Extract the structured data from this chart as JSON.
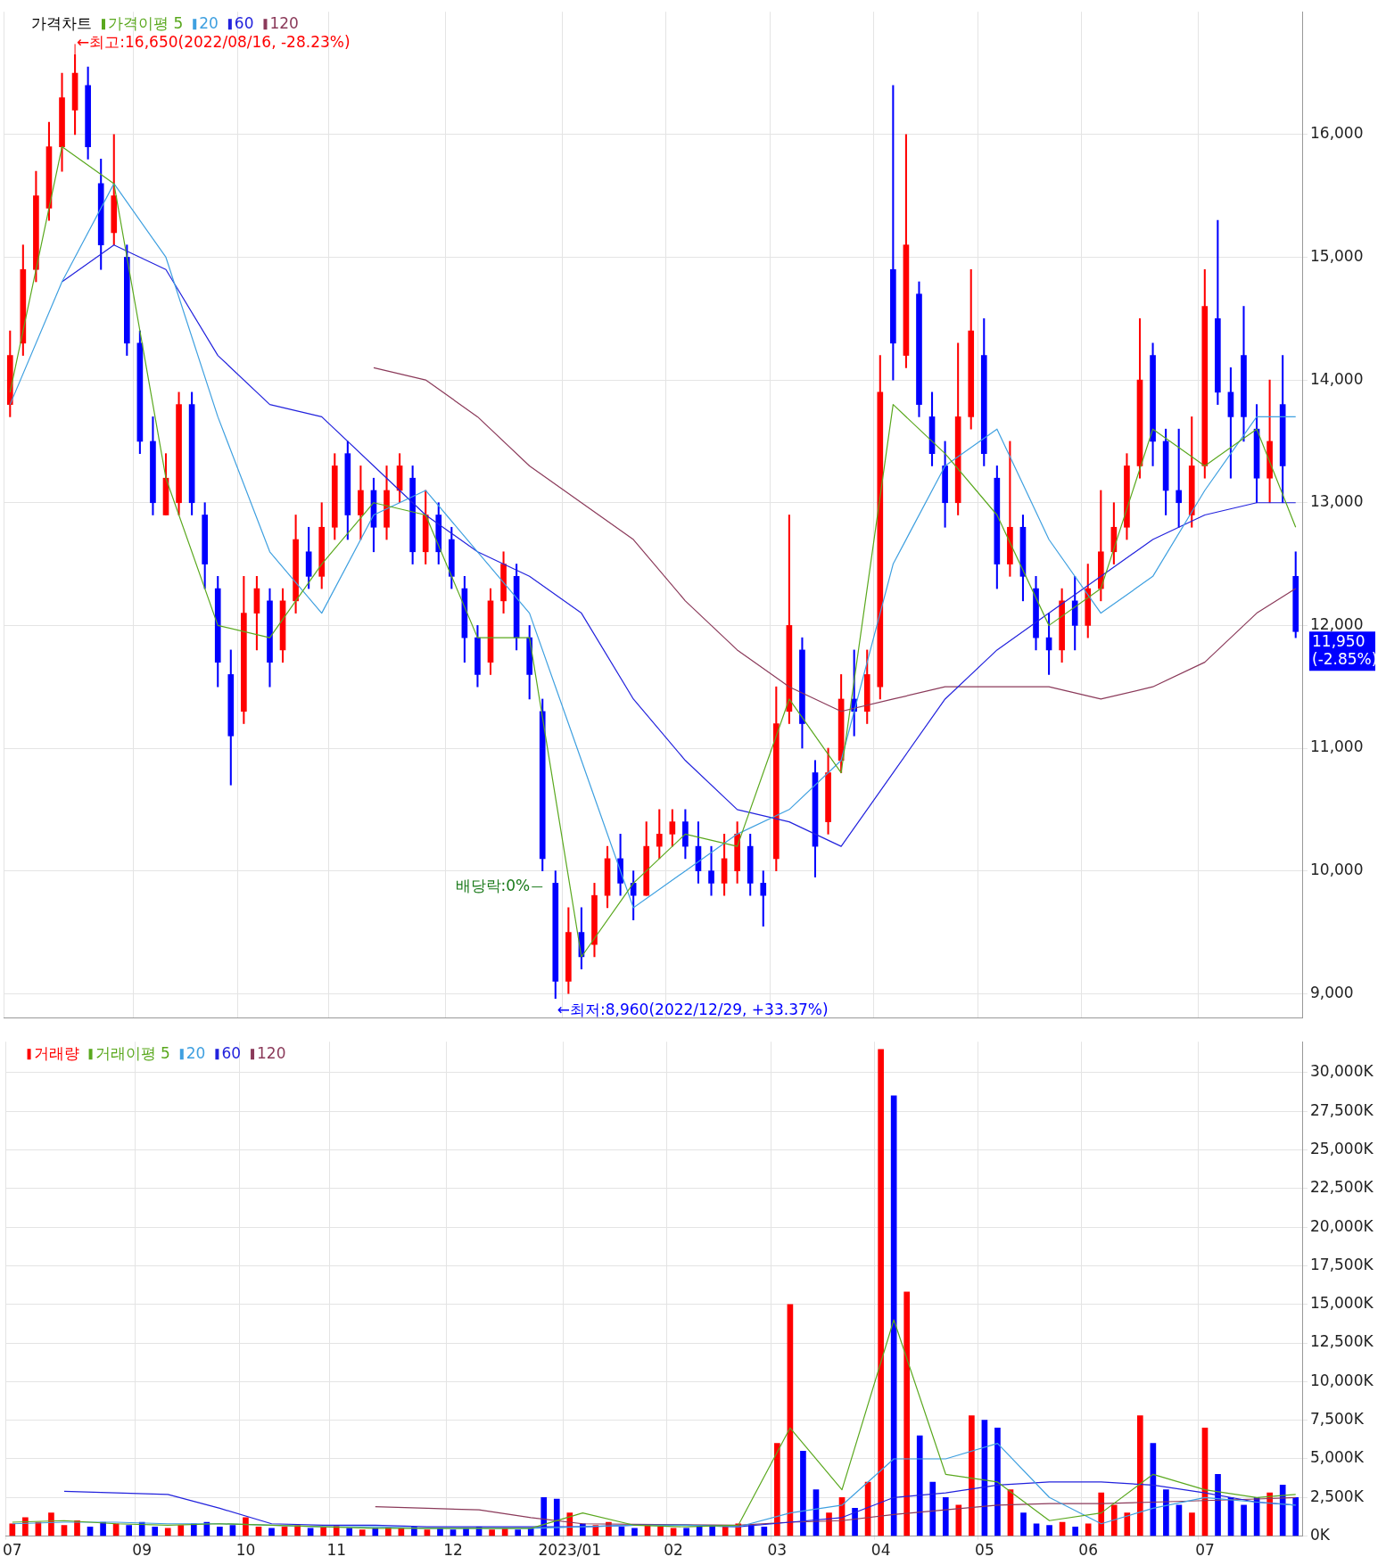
{
  "chart_data": [
    {
      "type": "candlestick",
      "categories": [
        "07",
        null,
        null,
        null,
        null,
        null,
        null,
        null,
        null,
        null,
        "09",
        null,
        null,
        null,
        null,
        null,
        null,
        null,
        "10",
        null,
        null,
        null,
        null,
        null,
        null,
        "11",
        null,
        null,
        null,
        null,
        null,
        null,
        null,
        null,
        "12",
        null,
        null,
        null,
        null,
        null,
        null,
        null,
        null,
        "2023/01",
        null,
        null,
        null,
        null,
        null,
        null,
        null,
        "02",
        null,
        null,
        null,
        null,
        null,
        null,
        null,
        "03",
        null,
        null,
        null,
        null,
        null,
        null,
        null,
        "04",
        null,
        null,
        null,
        null,
        null,
        null,
        null,
        "05",
        null,
        null,
        null,
        null,
        null,
        null,
        null,
        "06",
        null,
        null,
        null,
        null,
        null,
        null,
        null,
        null,
        "07",
        null,
        null,
        null,
        null,
        null,
        null,
        null
      ],
      "tick_labels": "y",
      "ylim": [
        8800,
        17000
      ],
      "yticks": [
        {
          "value": 9000,
          "label": "9,000"
        },
        {
          "value": 10000,
          "label": "10,000"
        },
        {
          "value": 11000,
          "label": "11,000"
        },
        {
          "value": 12000,
          "label": "12,000"
        },
        {
          "value": 13000,
          "label": "13,000"
        },
        {
          "value": 14000,
          "label": "14,000"
        },
        {
          "value": 15000,
          "label": "15,000"
        },
        {
          "value": 16000,
          "label": "16,000"
        }
      ],
      "grid": true,
      "legend": "top left",
      "marker": "none",
      "annotations": [
        "←최고:16,650(2022/08/16, -28.23%)",
        "←최저:8,960(2022/12/29, +33.37%)",
        "배당락:0%",
        "11,950\n(-2.85%)"
      ],
      "series": [
        {
          "name": "가격차트",
          "type": "candlestick",
          "ohlc": [
            [
              13800,
              14400,
              13700,
              14200
            ],
            [
              14300,
              15100,
              14200,
              14900
            ],
            [
              14900,
              15700,
              14800,
              15500
            ],
            [
              15400,
              16100,
              15300,
              15900
            ],
            [
              15900,
              16500,
              15700,
              16300
            ],
            [
              16200,
              16650,
              16000,
              16500
            ],
            [
              16400,
              16550,
              15800,
              15900
            ],
            [
              15600,
              15800,
              14900,
              15100
            ],
            [
              15200,
              16000,
              15100,
              15500
            ],
            [
              15000,
              15100,
              14200,
              14300
            ],
            [
              14300,
              14400,
              13400,
              13500
            ],
            [
              13500,
              13700,
              12900,
              13000
            ],
            [
              12900,
              13400,
              12900,
              13200
            ],
            [
              13000,
              13900,
              12900,
              13800
            ],
            [
              13800,
              13900,
              12900,
              13000
            ],
            [
              12900,
              13000,
              12300,
              12500
            ],
            [
              12300,
              12400,
              11500,
              11700
            ],
            [
              11600,
              11800,
              10700,
              11100
            ],
            [
              11300,
              12400,
              11200,
              12100
            ],
            [
              12100,
              12400,
              11800,
              12300
            ],
            [
              12200,
              12300,
              11500,
              11700
            ],
            [
              11800,
              12300,
              11700,
              12200
            ],
            [
              12200,
              12900,
              12100,
              12700
            ],
            [
              12600,
              12800,
              12300,
              12400
            ],
            [
              12400,
              13000,
              12300,
              12800
            ],
            [
              12800,
              13400,
              12700,
              13300
            ],
            [
              13400,
              13500,
              12700,
              12900
            ],
            [
              12900,
              13300,
              12700,
              13100
            ],
            [
              13100,
              13200,
              12600,
              12800
            ],
            [
              12800,
              13300,
              12700,
              13100
            ],
            [
              13100,
              13400,
              13000,
              13300
            ],
            [
              13200,
              13300,
              12500,
              12600
            ],
            [
              12600,
              13100,
              12500,
              12900
            ],
            [
              12900,
              13000,
              12500,
              12600
            ],
            [
              12700,
              12800,
              12300,
              12400
            ],
            [
              12300,
              12400,
              11700,
              11900
            ],
            [
              11900,
              12000,
              11500,
              11600
            ],
            [
              11700,
              12300,
              11600,
              12200
            ],
            [
              12200,
              12600,
              12100,
              12500
            ],
            [
              12400,
              12500,
              11800,
              11900
            ],
            [
              11900,
              12000,
              11400,
              11600
            ],
            [
              11300,
              11400,
              10000,
              10100
            ],
            [
              9900,
              10000,
              8960,
              9100
            ],
            [
              9100,
              9700,
              9000,
              9500
            ],
            [
              9500,
              9700,
              9200,
              9300
            ],
            [
              9400,
              9900,
              9300,
              9800
            ],
            [
              9800,
              10200,
              9700,
              10100
            ],
            [
              10100,
              10300,
              9800,
              9900
            ],
            [
              9900,
              10000,
              9600,
              9800
            ],
            [
              9800,
              10400,
              9800,
              10200
            ],
            [
              10200,
              10500,
              10100,
              10300
            ],
            [
              10300,
              10500,
              10200,
              10400
            ],
            [
              10400,
              10500,
              10100,
              10200
            ],
            [
              10200,
              10400,
              9900,
              10000
            ],
            [
              10000,
              10200,
              9800,
              9900
            ],
            [
              9900,
              10300,
              9800,
              10100
            ],
            [
              10000,
              10400,
              9900,
              10300
            ],
            [
              10200,
              10300,
              9800,
              9900
            ],
            [
              9900,
              10000,
              9550,
              9800
            ],
            [
              10100,
              11500,
              10000,
              11200
            ],
            [
              11300,
              12900,
              11200,
              12000
            ],
            [
              11800,
              11900,
              11000,
              11200
            ],
            [
              10800,
              10900,
              9950,
              10200
            ],
            [
              10400,
              11000,
              10300,
              10800
            ],
            [
              10900,
              11600,
              10800,
              11400
            ],
            [
              11400,
              11800,
              11100,
              11300
            ],
            [
              11300,
              11800,
              11200,
              11600
            ],
            [
              11500,
              14200,
              11400,
              13900
            ],
            [
              14900,
              16400,
              14000,
              14300
            ],
            [
              14200,
              16000,
              14100,
              15100
            ],
            [
              14700,
              14800,
              13700,
              13800
            ],
            [
              13700,
              13900,
              13300,
              13400
            ],
            [
              13300,
              13500,
              12800,
              13000
            ],
            [
              13000,
              14300,
              12900,
              13700
            ],
            [
              13700,
              14900,
              13600,
              14400
            ],
            [
              14200,
              14500,
              13300,
              13400
            ],
            [
              13200,
              13300,
              12300,
              12500
            ],
            [
              12500,
              13500,
              12400,
              12800
            ],
            [
              12800,
              12900,
              12200,
              12400
            ],
            [
              12300,
              12400,
              11800,
              11900
            ],
            [
              11900,
              12100,
              11600,
              11800
            ],
            [
              11800,
              12300,
              11700,
              12200
            ],
            [
              12200,
              12400,
              11800,
              12000
            ],
            [
              12000,
              12500,
              11900,
              12300
            ],
            [
              12300,
              13100,
              12200,
              12600
            ],
            [
              12600,
              13000,
              12500,
              12800
            ],
            [
              12800,
              13400,
              12700,
              13300
            ],
            [
              13300,
              14500,
              13200,
              14000
            ],
            [
              14200,
              14300,
              13300,
              13500
            ],
            [
              13500,
              13600,
              12900,
              13100
            ],
            [
              13100,
              13600,
              12800,
              13000
            ],
            [
              12900,
              13700,
              12800,
              13300
            ],
            [
              13300,
              14900,
              13200,
              14600
            ],
            [
              14500,
              15300,
              13800,
              13900
            ],
            [
              13900,
              14100,
              13200,
              13700
            ],
            [
              14200,
              14600,
              13500,
              13700
            ],
            [
              13600,
              13800,
              13000,
              13200
            ],
            [
              13200,
              14000,
              13000,
              13500
            ],
            [
              13800,
              14200,
              13000,
              13300
            ],
            [
              12400,
              12600,
              11900,
              11950
            ]
          ],
          "colors": [
            "#ff0000",
            "#ff0000",
            "#ff0000",
            "#ff0000",
            "#ff0000",
            "#ff0000",
            "#0000ff",
            "#0000ff",
            "#ff0000",
            "#0000ff",
            "#0000ff",
            "#0000ff",
            "#ff0000",
            "#ff0000",
            "#0000ff",
            "#0000ff",
            "#0000ff",
            "#0000ff",
            "#ff0000",
            "#ff0000",
            "#0000ff",
            "#ff0000",
            "#ff0000",
            "#0000ff",
            "#ff0000",
            "#ff0000",
            "#0000ff",
            "#ff0000",
            "#0000ff",
            "#ff0000",
            "#ff0000",
            "#0000ff",
            "#ff0000",
            "#0000ff",
            "#0000ff",
            "#0000ff",
            "#0000ff",
            "#ff0000",
            "#ff0000",
            "#0000ff",
            "#0000ff",
            "#0000ff",
            "#0000ff",
            "#ff0000",
            "#0000ff",
            "#ff0000",
            "#ff0000",
            "#0000ff",
            "#0000ff",
            "#ff0000",
            "#ff0000",
            "#ff0000",
            "#0000ff",
            "#0000ff",
            "#0000ff",
            "#ff0000",
            "#ff0000",
            "#0000ff",
            "#0000ff",
            "#ff0000",
            "#ff0000",
            "#0000ff",
            "#0000ff",
            "#ff0000",
            "#ff0000",
            "#0000ff",
            "#ff0000",
            "#ff0000",
            "#0000ff",
            "#ff0000",
            "#0000ff",
            "#0000ff",
            "#0000ff",
            "#ff0000",
            "#ff0000",
            "#0000ff",
            "#0000ff",
            "#ff0000",
            "#0000ff",
            "#0000ff",
            "#0000ff",
            "#ff0000",
            "#0000ff",
            "#ff0000",
            "#ff0000",
            "#ff0000",
            "#ff0000",
            "#ff0000",
            "#0000ff",
            "#0000ff",
            "#0000ff",
            "#ff0000",
            "#ff0000",
            "#0000ff",
            "#0000ff",
            "#0000ff",
            "#0000ff",
            "#ff0000",
            "#0000ff",
            "#0000ff"
          ]
        },
        {
          "name": "가격이평 5",
          "type": "line",
          "color": "#5aa81e",
          "values": [
            13900,
            null,
            null,
            null,
            15900,
            null,
            null,
            null,
            15600,
            null,
            null,
            null,
            13200,
            null,
            null,
            null,
            12000,
            null,
            null,
            null,
            11900,
            null,
            null,
            null,
            12500,
            null,
            null,
            null,
            13000,
            null,
            null,
            null,
            12900,
            null,
            null,
            null,
            11900,
            null,
            null,
            null,
            11900,
            null,
            null,
            null,
            9300,
            null,
            null,
            null,
            9900,
            null,
            null,
            null,
            10300,
            null,
            null,
            null,
            10200,
            null,
            null,
            null,
            11400,
            null,
            null,
            null,
            10800,
            null,
            null,
            null,
            13800,
            null,
            null,
            null,
            13400,
            null,
            null,
            null,
            12900,
            null,
            null,
            null,
            12000,
            null,
            null,
            null,
            12300,
            null,
            null,
            null,
            13600,
            null,
            null,
            null,
            13300,
            null,
            null,
            null,
            13600,
            null,
            null,
            12800
          ]
        },
        {
          "name": "20",
          "type": "line",
          "color": "#3fa0e0",
          "values": [
            13800,
            null,
            null,
            null,
            14800,
            null,
            null,
            null,
            15600,
            null,
            null,
            null,
            15000,
            null,
            null,
            null,
            13700,
            null,
            null,
            null,
            12600,
            null,
            null,
            null,
            12100,
            null,
            null,
            null,
            12900,
            null,
            null,
            null,
            13100,
            null,
            null,
            null,
            12600,
            null,
            null,
            null,
            12100,
            null,
            null,
            null,
            10900,
            null,
            null,
            null,
            9700,
            null,
            null,
            null,
            10000,
            null,
            null,
            null,
            10300,
            null,
            null,
            null,
            10500,
            null,
            null,
            null,
            10900,
            null,
            null,
            null,
            12500,
            null,
            null,
            null,
            13300,
            null,
            null,
            null,
            13600,
            null,
            null,
            null,
            12700,
            null,
            null,
            null,
            12100,
            null,
            null,
            null,
            12400,
            null,
            null,
            null,
            13100,
            null,
            null,
            null,
            13700,
            null,
            null,
            13700
          ]
        },
        {
          "name": "60",
          "type": "line",
          "color": "#2222dd",
          "values": [
            null,
            null,
            null,
            null,
            14800,
            null,
            null,
            null,
            15100,
            null,
            null,
            null,
            14900,
            null,
            null,
            null,
            14200,
            null,
            null,
            null,
            13800,
            null,
            null,
            null,
            13700,
            null,
            null,
            null,
            13300,
            null,
            null,
            null,
            12900,
            null,
            null,
            null,
            12600,
            null,
            null,
            null,
            12400,
            null,
            null,
            null,
            12100,
            null,
            null,
            null,
            11400,
            null,
            null,
            null,
            10900,
            null,
            null,
            null,
            10500,
            null,
            null,
            null,
            10400,
            null,
            null,
            null,
            10200,
            null,
            null,
            null,
            10800,
            null,
            null,
            null,
            11400,
            null,
            null,
            null,
            11800,
            null,
            null,
            null,
            12100,
            null,
            null,
            null,
            12400,
            null,
            null,
            null,
            12700,
            null,
            null,
            null,
            12900,
            null,
            null,
            null,
            13000,
            null,
            null,
            13000
          ]
        },
        {
          "name": "120",
          "type": "line",
          "color": "#8b3a5a",
          "values": [
            null,
            null,
            null,
            null,
            null,
            null,
            null,
            null,
            null,
            null,
            null,
            null,
            null,
            null,
            null,
            null,
            null,
            null,
            null,
            null,
            null,
            null,
            null,
            null,
            null,
            null,
            null,
            null,
            14100,
            null,
            null,
            null,
            14000,
            null,
            null,
            null,
            13700,
            null,
            null,
            null,
            13300,
            null,
            null,
            null,
            13000,
            null,
            null,
            null,
            12700,
            null,
            null,
            null,
            12200,
            null,
            null,
            null,
            11800,
            null,
            null,
            null,
            11500,
            null,
            null,
            null,
            11300,
            null,
            null,
            null,
            11400,
            null,
            null,
            null,
            11500,
            null,
            null,
            null,
            11500,
            null,
            null,
            null,
            11500,
            null,
            null,
            null,
            11400,
            null,
            null,
            null,
            11500,
            null,
            null,
            null,
            11700,
            null,
            null,
            null,
            12100,
            null,
            null,
            12300
          ]
        }
      ]
    },
    {
      "type": "bar",
      "categories": [
        "07",
        null,
        null,
        null,
        null,
        null,
        null,
        null,
        null,
        null,
        "09",
        null,
        null,
        null,
        null,
        null,
        null,
        null,
        "10",
        null,
        null,
        null,
        null,
        null,
        null,
        "11",
        null,
        null,
        null,
        null,
        null,
        null,
        null,
        null,
        "12",
        null,
        null,
        null,
        null,
        null,
        null,
        null,
        null,
        "2023/01",
        null,
        null,
        null,
        null,
        null,
        null,
        null,
        "02",
        null,
        null,
        null,
        null,
        null,
        null,
        null,
        "03",
        null,
        null,
        null,
        null,
        null,
        null,
        null,
        "04",
        null,
        null,
        null,
        null,
        null,
        null,
        null,
        "05",
        null,
        null,
        null,
        null,
        null,
        null,
        null,
        "06",
        null,
        null,
        null,
        null,
        null,
        null,
        null,
        null,
        "07",
        null,
        null,
        null,
        null,
        null,
        null,
        null
      ],
      "ylim": [
        0,
        32000
      ],
      "yticks": [
        {
          "value": 0,
          "label": "0K"
        },
        {
          "value": 2500,
          "label": "2,500K"
        },
        {
          "value": 5000,
          "label": "5,000K"
        },
        {
          "value": 7500,
          "label": "7,500K"
        },
        {
          "value": 10000,
          "label": "10,000K"
        },
        {
          "value": 12500,
          "label": "12,500K"
        },
        {
          "value": 15000,
          "label": "15,000K"
        },
        {
          "value": 17500,
          "label": "17,500K"
        },
        {
          "value": 20000,
          "label": "20,000K"
        },
        {
          "value": 22500,
          "label": "22,500K"
        },
        {
          "value": 25000,
          "label": "25,000K"
        },
        {
          "value": 27500,
          "label": "27,500K"
        },
        {
          "value": 30000,
          "label": "30,000K"
        }
      ],
      "grid": true,
      "legend": "top left",
      "marker": "none",
      "series": [
        {
          "name": "거래량",
          "type": "bar",
          "color": "#ff0000",
          "values": [
            800,
            1200,
            900,
            1500,
            700,
            1000,
            600,
            900,
            800,
            700,
            900,
            600,
            500,
            700,
            800,
            900,
            600,
            700,
            1200,
            600,
            500,
            600,
            700,
            500,
            600,
            700,
            500,
            400,
            500,
            600,
            500,
            600,
            400,
            500,
            400,
            500,
            600,
            400,
            500,
            400,
            500,
            2500,
            2400,
            1500,
            800,
            700,
            900,
            600,
            500,
            700,
            600,
            500,
            500,
            600,
            700,
            600,
            800,
            700,
            600,
            6000,
            15000,
            5500,
            3000,
            1500,
            2500,
            1800,
            3500,
            31500,
            28500,
            15800,
            6500,
            3500,
            2500,
            2000,
            7800,
            7500,
            7000,
            3000,
            1500,
            800,
            700,
            900,
            600,
            800,
            2800,
            2000,
            1500,
            7800,
            6000,
            3000,
            2000,
            1500,
            7000,
            4000,
            2500,
            2000,
            2500,
            2800,
            3300,
            2500
          ],
          "colors": [
            "#ff0000",
            "#ff0000",
            "#ff0000",
            "#ff0000",
            "#ff0000",
            "#ff0000",
            "#0000ff",
            "#0000ff",
            "#ff0000",
            "#0000ff",
            "#0000ff",
            "#0000ff",
            "#ff0000",
            "#ff0000",
            "#0000ff",
            "#0000ff",
            "#0000ff",
            "#0000ff",
            "#ff0000",
            "#ff0000",
            "#0000ff",
            "#ff0000",
            "#ff0000",
            "#0000ff",
            "#ff0000",
            "#ff0000",
            "#0000ff",
            "#ff0000",
            "#0000ff",
            "#ff0000",
            "#ff0000",
            "#0000ff",
            "#ff0000",
            "#0000ff",
            "#0000ff",
            "#0000ff",
            "#0000ff",
            "#ff0000",
            "#ff0000",
            "#0000ff",
            "#0000ff",
            "#0000ff",
            "#0000ff",
            "#ff0000",
            "#0000ff",
            "#ff0000",
            "#ff0000",
            "#0000ff",
            "#0000ff",
            "#ff0000",
            "#ff0000",
            "#ff0000",
            "#0000ff",
            "#0000ff",
            "#0000ff",
            "#ff0000",
            "#ff0000",
            "#0000ff",
            "#0000ff",
            "#ff0000",
            "#ff0000",
            "#0000ff",
            "#0000ff",
            "#ff0000",
            "#ff0000",
            "#0000ff",
            "#ff0000",
            "#ff0000",
            "#0000ff",
            "#ff0000",
            "#0000ff",
            "#0000ff",
            "#0000ff",
            "#ff0000",
            "#ff0000",
            "#0000ff",
            "#0000ff",
            "#ff0000",
            "#0000ff",
            "#0000ff",
            "#0000ff",
            "#ff0000",
            "#0000ff",
            "#ff0000",
            "#ff0000",
            "#ff0000",
            "#ff0000",
            "#ff0000",
            "#0000ff",
            "#0000ff",
            "#0000ff",
            "#ff0000",
            "#ff0000",
            "#0000ff",
            "#0000ff",
            "#0000ff",
            "#0000ff",
            "#ff0000",
            "#0000ff",
            "#0000ff"
          ]
        },
        {
          "name": "거래이평 5",
          "type": "line",
          "color": "#5aa81e",
          "values": [
            900,
            null,
            null,
            null,
            1000,
            null,
            null,
            null,
            800,
            null,
            null,
            null,
            700,
            null,
            null,
            null,
            800,
            null,
            null,
            null,
            700,
            null,
            null,
            null,
            600,
            null,
            null,
            null,
            500,
            null,
            null,
            null,
            500,
            null,
            null,
            null,
            500,
            null,
            null,
            null,
            500,
            null,
            null,
            null,
            1500,
            null,
            null,
            null,
            700,
            null,
            null,
            null,
            600,
            null,
            null,
            null,
            700,
            null,
            null,
            null,
            7000,
            null,
            null,
            null,
            3000,
            null,
            null,
            null,
            14000,
            null,
            null,
            null,
            4000,
            null,
            null,
            null,
            3500,
            null,
            null,
            null,
            1000,
            null,
            null,
            null,
            1500,
            null,
            null,
            null,
            4000,
            null,
            null,
            null,
            3000,
            null,
            null,
            null,
            2500,
            null,
            null,
            2700
          ]
        },
        {
          "name": "20",
          "type": "line",
          "color": "#3fa0e0",
          "values": [
            800,
            null,
            null,
            null,
            900,
            null,
            null,
            null,
            900,
            null,
            null,
            null,
            800,
            null,
            null,
            null,
            800,
            null,
            null,
            null,
            700,
            null,
            null,
            null,
            600,
            null,
            null,
            null,
            600,
            null,
            null,
            null,
            500,
            null,
            null,
            null,
            500,
            null,
            null,
            null,
            500,
            null,
            null,
            null,
            600,
            null,
            null,
            null,
            700,
            null,
            null,
            null,
            700,
            null,
            null,
            null,
            600,
            null,
            null,
            null,
            1500,
            null,
            null,
            null,
            2000,
            null,
            null,
            null,
            5000,
            null,
            null,
            null,
            5000,
            null,
            null,
            null,
            6000,
            null,
            null,
            null,
            2500,
            null,
            null,
            null,
            800,
            null,
            null,
            null,
            1800,
            null,
            null,
            null,
            2500,
            null,
            null,
            null,
            2200,
            null,
            null,
            2000
          ]
        },
        {
          "name": "60",
          "type": "line",
          "color": "#2222dd",
          "values": [
            null,
            null,
            null,
            null,
            2900,
            null,
            null,
            null,
            2800,
            null,
            null,
            null,
            2700,
            null,
            null,
            null,
            1800,
            null,
            null,
            null,
            800,
            null,
            null,
            null,
            700,
            null,
            null,
            null,
            700,
            null,
            null,
            null,
            600,
            null,
            null,
            null,
            600,
            null,
            null,
            null,
            600,
            null,
            null,
            null,
            600,
            null,
            null,
            null,
            700,
            null,
            null,
            null,
            700,
            null,
            null,
            null,
            600,
            null,
            null,
            null,
            900,
            null,
            null,
            null,
            1200,
            null,
            null,
            null,
            2500,
            null,
            null,
            null,
            2800,
            null,
            null,
            null,
            3300,
            null,
            null,
            null,
            3500,
            null,
            null,
            null,
            3500,
            null,
            null,
            null,
            3300,
            null,
            null,
            null,
            2800,
            null,
            null,
            null,
            2200,
            null,
            null,
            2000
          ]
        },
        {
          "name": "120",
          "type": "line",
          "color": "#8b3a5a",
          "values": [
            null,
            null,
            null,
            null,
            null,
            null,
            null,
            null,
            null,
            null,
            null,
            null,
            null,
            null,
            null,
            null,
            null,
            null,
            null,
            null,
            null,
            null,
            null,
            null,
            null,
            null,
            null,
            null,
            1900,
            null,
            null,
            null,
            1800,
            null,
            null,
            null,
            1700,
            null,
            null,
            null,
            1200,
            null,
            null,
            null,
            800,
            null,
            null,
            null,
            null,
            null,
            null,
            null,
            null,
            null,
            null,
            null,
            700,
            null,
            null,
            null,
            900,
            null,
            null,
            null,
            1000,
            null,
            null,
            null,
            1400,
            null,
            null,
            null,
            1700,
            null,
            null,
            null,
            2000,
            null,
            null,
            null,
            2100,
            null,
            null,
            null,
            2100,
            null,
            null,
            null,
            2200,
            null,
            null,
            null,
            2300,
            null,
            null,
            null,
            2400,
            null,
            null,
            2500
          ]
        }
      ]
    }
  ]
}
